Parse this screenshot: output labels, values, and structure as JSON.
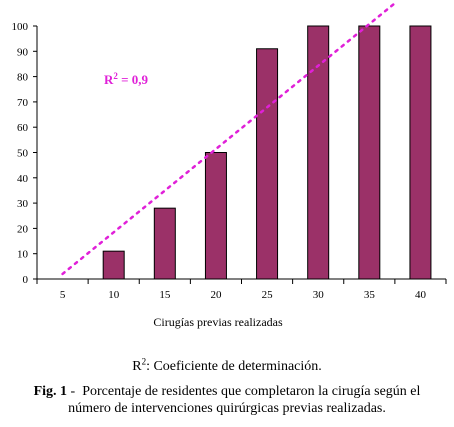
{
  "chart_data": {
    "type": "bar",
    "categories": [
      "5",
      "10",
      "15",
      "20",
      "25",
      "30",
      "35",
      "40"
    ],
    "values": [
      0,
      11,
      28,
      50,
      91,
      100,
      100,
      100
    ],
    "xlabel": "Cirugías previas realizadas",
    "ylabel": "",
    "ylim": [
      0,
      100
    ],
    "yticks": [
      "0",
      "10",
      "20",
      "30",
      "40",
      "50",
      "60",
      "70",
      "80",
      "90",
      "100"
    ],
    "bar_color": "#9b3168",
    "trendline": {
      "style": "dotted",
      "color": "#e020d8",
      "start": {
        "category": "5",
        "value": 2
      },
      "end": {
        "category": "35",
        "value": 109
      }
    },
    "annotation": {
      "prefix": "R",
      "sup": "2",
      "suffix": " = 0,9",
      "color": "#e020d8"
    },
    "grid": false,
    "legend": "none"
  },
  "caption": {
    "note_prefix": "R",
    "note_sup": "2",
    "note_text": ": Coeficiente de determinación.",
    "fig_label": "Fig. 1",
    "fig_sep": " -  ",
    "fig_line1": "Porcentaje de residentes que completaron la cirugía según el",
    "fig_line2": "número de intervenciones quirúrgicas previas realizadas."
  }
}
